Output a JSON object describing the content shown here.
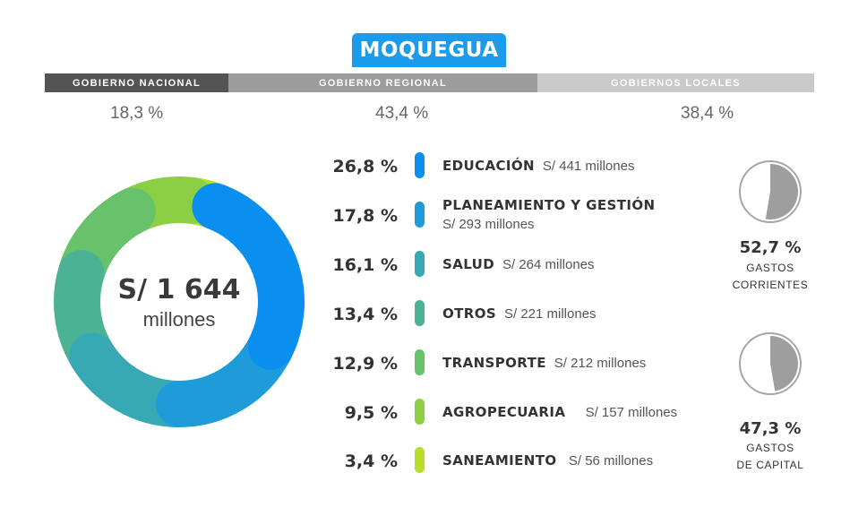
{
  "title": "MOQUEGUA",
  "government_levels": [
    {
      "label": "GOBIERNO NACIONAL",
      "share": "18,3 %",
      "color": "#545454"
    },
    {
      "label": "GOBIERNO REGIONAL",
      "share": "43,4 %",
      "color": "#9c9c9c"
    },
    {
      "label": "GOBIERNOS LOCALES",
      "share": "38,4 %",
      "color": "#c9c9c9"
    }
  ],
  "total": {
    "amount": "S/ 1 644",
    "unit": "millones"
  },
  "chart_data": {
    "type": "pie",
    "donut": true,
    "categories": [
      "EDUCACIÓN",
      "PLANEAMIENTO Y GESTIÓN",
      "SALUD",
      "OTROS",
      "TRANSPORTE",
      "AGROPECUARIA",
      "SANEAMIENTO"
    ],
    "values": [
      26.8,
      17.8,
      16.1,
      13.4,
      12.9,
      9.5,
      3.4
    ],
    "value_labels": [
      "26,8 %",
      "17,8 %",
      "16,1 %",
      "13,4 %",
      "12,9 %",
      "9,5 %",
      "3,4 %"
    ],
    "amount_labels": [
      "S/ 441 millones",
      "S/ 293 millones",
      "S/ 264 millones",
      "S/ 221 millones",
      "S/ 212 millones",
      "S/ 157 millones",
      "S/ 56 millones"
    ],
    "amounts_millions": [
      441,
      293,
      264,
      221,
      212,
      157,
      56
    ],
    "colors": [
      "#0a8ff0",
      "#1d9cd9",
      "#36a9b5",
      "#4bb394",
      "#68c26b",
      "#8ccf45",
      "#b9dd2a"
    ]
  },
  "expense_types": [
    {
      "value": 52.7,
      "pct_label": "52,7 %",
      "label_line1": "GASTOS",
      "label_line2": "CORRIENTES"
    },
    {
      "value": 47.3,
      "pct_label": "47,3 %",
      "label_line1": "GASTOS",
      "label_line2": "DE CAPITAL"
    }
  ]
}
